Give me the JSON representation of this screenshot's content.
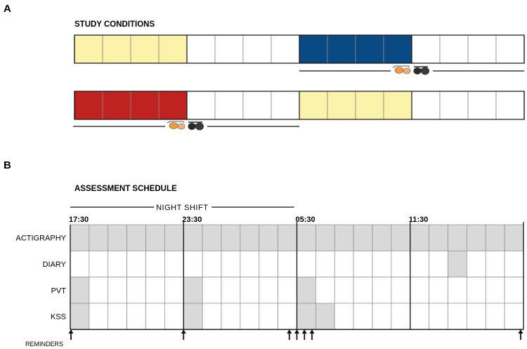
{
  "panel_a": {
    "letter": "A",
    "title": "STUDY CONDITIONS",
    "conditions": [
      {
        "cells": [
          "yellow",
          "yellow",
          "yellow",
          "yellow",
          "white",
          "white",
          "white",
          "white",
          "blue",
          "blue",
          "blue",
          "blue",
          "white",
          "white",
          "white",
          "white"
        ],
        "glasses_line_span": [
          8,
          16
        ]
      },
      {
        "cells": [
          "red",
          "red",
          "red",
          "red",
          "white",
          "white",
          "white",
          "white",
          "yellow",
          "yellow",
          "yellow",
          "yellow",
          "white",
          "white",
          "white",
          "white"
        ],
        "glasses_line_span": [
          0,
          8
        ]
      }
    ],
    "glasses_icon": "sunglasses-icon"
  },
  "panel_b": {
    "letter": "B",
    "title": "ASSESSMENT SCHEDULE",
    "night_shift_label": "NIGHT SHIFT",
    "night_shift_span": [
      0,
      12
    ],
    "columns": 24,
    "time_labels": [
      {
        "label": "17:30",
        "col": 0
      },
      {
        "label": "23:30",
        "col": 6
      },
      {
        "label": "05:30",
        "col": 12
      },
      {
        "label": "11:30",
        "col": 18
      }
    ],
    "rows": [
      {
        "label": "ACTIGRAPHY",
        "shaded": [
          0,
          1,
          2,
          3,
          4,
          5,
          6,
          7,
          8,
          9,
          10,
          11,
          12,
          13,
          14,
          15,
          16,
          17,
          18,
          19,
          20,
          21,
          22,
          23
        ]
      },
      {
        "label": "DIARY",
        "shaded": [
          20
        ]
      },
      {
        "label": "PVT",
        "shaded": [
          0,
          6,
          12
        ]
      },
      {
        "label": "KSS",
        "shaded": [
          0,
          6,
          12,
          13
        ]
      }
    ],
    "reminders_label": "REMINDERS",
    "reminder_positions": [
      0,
      6,
      11.6,
      12,
      12.4,
      12.8,
      24
    ]
  },
  "colors": {
    "yellow": "#fbf3aa",
    "blue": "#0a4a84",
    "red": "#c0221f",
    "white": "#ffffff",
    "shade": "#d9d9d9",
    "grid": "#808080",
    "ink": "#111111"
  }
}
